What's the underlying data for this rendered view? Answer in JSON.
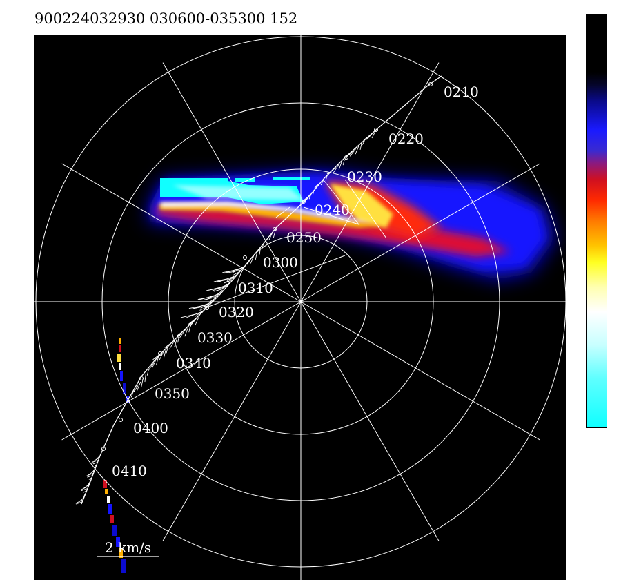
{
  "header": {
    "title": "900224032930 030600-035300 152"
  },
  "plot": {
    "background": "#000000",
    "grid_color": "#ffffff",
    "rings": 4,
    "spokes": 12
  },
  "time_labels": [
    "0210",
    "0220",
    "0230",
    "0240",
    "0250",
    "0300",
    "0310",
    "0320",
    "0330",
    "0340",
    "0350",
    "0400",
    "0410"
  ],
  "scale": {
    "label": "2 km/s"
  },
  "colorbar": {
    "colors": [
      "#000000",
      "#0a0a8a",
      "#1a1aff",
      "#d01020",
      "#ff7a00",
      "#ffff20",
      "#ffffff",
      "#10ffff"
    ]
  }
}
